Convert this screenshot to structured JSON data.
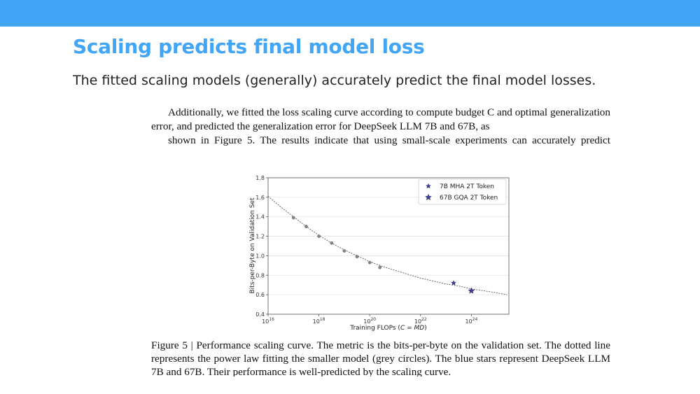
{
  "slide": {
    "title": "Scaling predicts final model loss",
    "subtitle": "The fitted scaling models (generally) accurately predict the final model losses.",
    "accent_color": "#42a5f5"
  },
  "paper": {
    "paragraph": "Additionally, we fitted the loss scaling curve according to compute budget C and optimal generalization error, and predicted the generalization error for DeepSeek LLM 7B and 67B, as",
    "paragraph_last_line": "shown in Figure 5. The results indicate that using small-scale experiments can accurately predict",
    "caption": "Figure 5 | Performance scaling curve. The metric is the bits-per-byte on the validation set. The dotted line represents the power law fitting the smaller model (grey circles). The blue stars represent DeepSeek LLM 7B and 67B. Their performance is well-predicted by the scaling curve."
  },
  "chart_data": {
    "type": "scatter",
    "xscale": "log",
    "xlabel": "Training FLOPs (C = MD)",
    "ylabel": "Bits-per-Byte on Validation Set",
    "xlim": [
      1e+16,
      3e+25
    ],
    "ylim": [
      0.4,
      1.8
    ],
    "x_ticks": [
      {
        "exp": 16,
        "label": "10^16"
      },
      {
        "exp": 18,
        "label": "10^18"
      },
      {
        "exp": 20,
        "label": "10^20"
      },
      {
        "exp": 22,
        "label": "10^22"
      },
      {
        "exp": 24,
        "label": "10^24"
      }
    ],
    "y_ticks": [
      "0.4",
      "0.6",
      "0.8",
      "1.0",
      "1.2",
      "1.4",
      "1.6",
      "1.8"
    ],
    "grid": true,
    "legend_position": "top-right",
    "fit_curve": {
      "style": "dotted",
      "x_log10": [
        16.0,
        16.5,
        17.0,
        17.5,
        18.0,
        18.5,
        19.0,
        19.5,
        20.0,
        20.5,
        21.0,
        21.5,
        22.0,
        22.5,
        23.0,
        23.5,
        24.0,
        24.5,
        25.0,
        25.4
      ],
      "y": [
        1.61,
        1.5,
        1.4,
        1.3,
        1.21,
        1.13,
        1.06,
        1.0,
        0.94,
        0.89,
        0.85,
        0.81,
        0.77,
        0.74,
        0.71,
        0.69,
        0.66,
        0.64,
        0.62,
        0.6
      ]
    },
    "grey_points": {
      "color": "#888888",
      "x_log10": [
        17.0,
        17.5,
        18.0,
        18.5,
        19.0,
        19.5,
        20.0,
        20.4
      ],
      "y": [
        1.39,
        1.3,
        1.2,
        1.13,
        1.05,
        0.99,
        0.93,
        0.88
      ]
    },
    "series": [
      {
        "name": "7B MHA 2T Token",
        "x": [
          2e+23
        ],
        "y": [
          0.72
        ],
        "marker": "star",
        "color": "#3f3f9a",
        "size": "small"
      },
      {
        "name": "67B GQA 2T Token",
        "x": [
          1e+24
        ],
        "y": [
          0.64
        ],
        "marker": "star",
        "color": "#3f3f9a",
        "size": "large"
      }
    ]
  }
}
